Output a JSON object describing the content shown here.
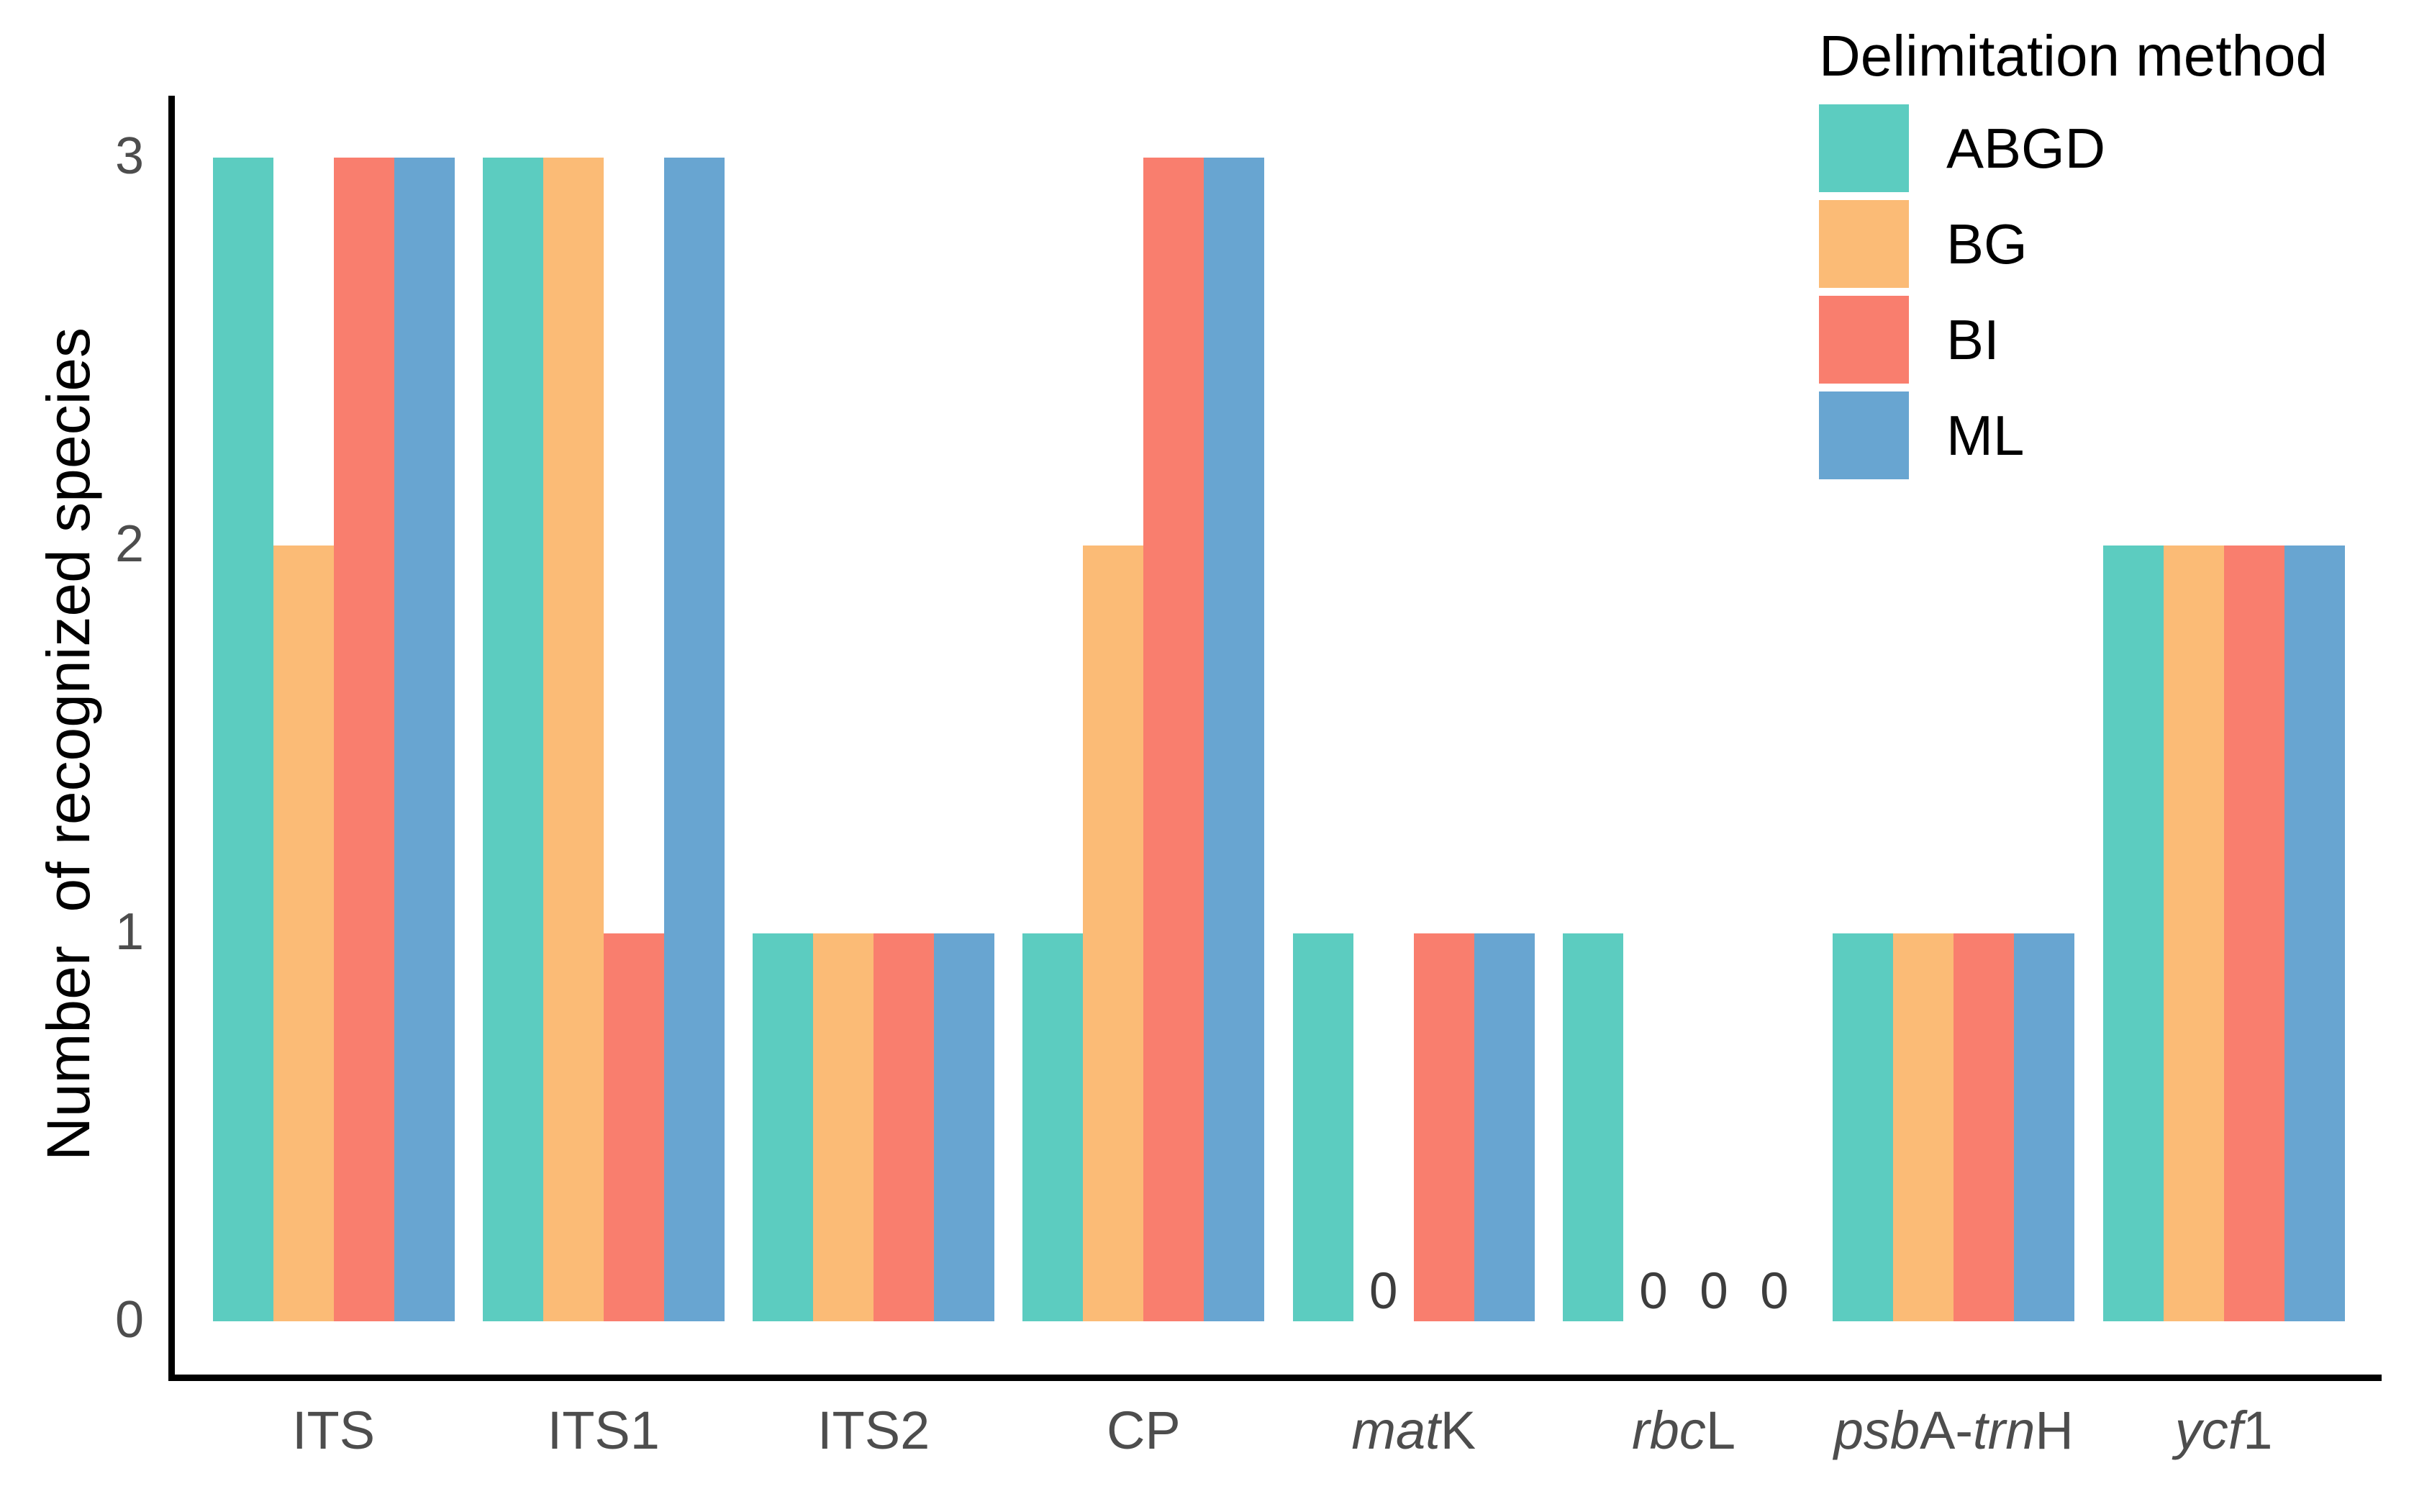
{
  "figure": {
    "background": "#ffffff"
  },
  "axis": {
    "y_title": "Number  of recognized species",
    "y_tick_labels": [
      "0",
      "1",
      "2",
      "3"
    ],
    "tick_label_color": "#4d4d4d",
    "axis_line_color": "#000000"
  },
  "legend": {
    "title": "Delimitation method",
    "items": [
      {
        "label": "ABGD",
        "color": "#5cccc0"
      },
      {
        "label": "BG",
        "color": "#fbbb76"
      },
      {
        "label": "BI",
        "color": "#f97e6e"
      },
      {
        "label": "ML",
        "color": "#68a5d1"
      }
    ]
  },
  "annotations": {
    "zero_label": "0",
    "zero_label_color": "#3d3d3d"
  },
  "chart_data": {
    "type": "bar",
    "bar_layout": "grouped",
    "title": "",
    "xlabel": "",
    "ylabel": "Number  of recognized species",
    "ylim": [
      0,
      3
    ],
    "yticks": [
      0,
      1,
      2,
      3
    ],
    "grid": false,
    "legend_title": "Delimitation method",
    "legend_position": "top-right-inside",
    "categories": [
      "ITS",
      "ITS1",
      "ITS2",
      "CP",
      "matK",
      "rbcL",
      "psbA-trnH",
      "ycf1"
    ],
    "categories_rich": [
      [
        {
          "text": "ITS",
          "italic": false
        }
      ],
      [
        {
          "text": "ITS1",
          "italic": false
        }
      ],
      [
        {
          "text": "ITS2",
          "italic": false
        }
      ],
      [
        {
          "text": "CP",
          "italic": false
        }
      ],
      [
        {
          "text": "mat",
          "italic": true
        },
        {
          "text": "K",
          "italic": false
        }
      ],
      [
        {
          "text": "rbc",
          "italic": true
        },
        {
          "text": "L",
          "italic": false
        }
      ],
      [
        {
          "text": "psb",
          "italic": true
        },
        {
          "text": "A-",
          "italic": false
        },
        {
          "text": "trn",
          "italic": true
        },
        {
          "text": "H",
          "italic": false
        }
      ],
      [
        {
          "text": "ycf",
          "italic": true
        },
        {
          "text": "1",
          "italic": false
        }
      ]
    ],
    "series": [
      {
        "name": "ABGD",
        "color": "#5cccc0",
        "values": [
          3,
          3,
          1,
          1,
          1,
          1,
          1,
          2
        ]
      },
      {
        "name": "BG",
        "color": "#fbbb76",
        "values": [
          2,
          3,
          1,
          2,
          0,
          0,
          1,
          2
        ]
      },
      {
        "name": "BI",
        "color": "#f97e6e",
        "values": [
          3,
          1,
          1,
          3,
          1,
          0,
          1,
          2
        ]
      },
      {
        "name": "ML",
        "color": "#68a5d1",
        "values": [
          3,
          3,
          1,
          3,
          1,
          0,
          1,
          2
        ]
      }
    ]
  }
}
